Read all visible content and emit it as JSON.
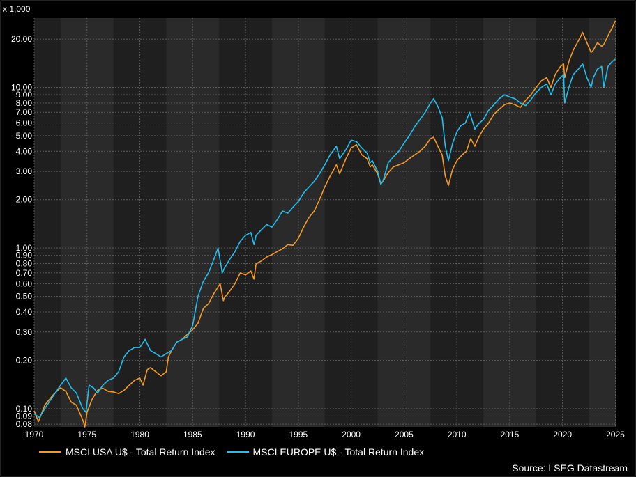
{
  "chart_data": {
    "type": "line",
    "unit_label": "x 1,000",
    "y_scale": "log",
    "ylim": [
      0.077,
      27
    ],
    "xlim": [
      1970,
      2025.1
    ],
    "y_ticks": [
      0.08,
      0.09,
      0.1,
      0.2,
      0.3,
      0.4,
      0.5,
      0.6,
      0.7,
      0.8,
      0.9,
      1.0,
      2.0,
      3.0,
      4.0,
      5.0,
      6.0,
      7.0,
      8.0,
      9.0,
      10.0,
      20.0
    ],
    "y_tick_labels": [
      "0.08",
      "0.09",
      "0.10",
      "0.20",
      "0.30",
      "0.40",
      "0.50",
      "0.60",
      "0.70",
      "0.80",
      "0.90",
      "1.00",
      "2.00",
      "3.00",
      "4.00",
      "5.00",
      "6.00",
      "7.00",
      "8.00",
      "9.00",
      "10.00",
      "20.00"
    ],
    "x_ticks": [
      1970,
      1975,
      1980,
      1985,
      1990,
      1995,
      2000,
      2005,
      2010,
      2015,
      2020,
      2025
    ],
    "x_tick_labels": [
      "1970",
      "1975",
      "1980",
      "1985",
      "1990",
      "1995",
      "2000",
      "2005",
      "2010",
      "2015",
      "2020",
      "2025"
    ],
    "shaded_bands": [
      [
        1972.5,
        1977.5
      ],
      [
        1982.5,
        1987.5
      ],
      [
        1992.5,
        1997.5
      ],
      [
        2002.5,
        2007.5
      ],
      [
        2012.5,
        2017.5
      ],
      [
        2022.5,
        2025.1
      ]
    ],
    "series": [
      {
        "name": "MSCI USA U$ - Total Return Index",
        "color": "#f39a1f",
        "x": [
          1970.0,
          1970.4,
          1971.0,
          1971.8,
          1972.5,
          1973.0,
          1973.5,
          1974.0,
          1974.6,
          1974.8,
          1975.0,
          1975.5,
          1976.0,
          1976.5,
          1977.0,
          1977.5,
          1978.0,
          1978.5,
          1979.0,
          1979.5,
          1980.0,
          1980.3,
          1980.7,
          1981.0,
          1981.5,
          1982.0,
          1982.5,
          1982.7,
          1983.0,
          1983.5,
          1984.0,
          1984.5,
          1985.0,
          1985.5,
          1986.0,
          1986.5,
          1987.0,
          1987.6,
          1987.9,
          1988.0,
          1988.5,
          1989.0,
          1989.5,
          1990.0,
          1990.5,
          1990.8,
          1991.0,
          1991.5,
          1992.0,
          1992.5,
          1993.0,
          1993.5,
          1994.0,
          1994.5,
          1995.0,
          1995.5,
          1996.0,
          1996.5,
          1997.0,
          1997.5,
          1998.0,
          1998.6,
          1998.9,
          1999.5,
          2000.0,
          2000.5,
          2001.0,
          2001.5,
          2001.8,
          2002.0,
          2002.5,
          2002.8,
          2003.0,
          2003.5,
          2004.0,
          2004.5,
          2005.0,
          2005.5,
          2006.0,
          2006.5,
          2007.0,
          2007.5,
          2007.8,
          2008.2,
          2008.6,
          2008.9,
          2009.2,
          2009.6,
          2010.0,
          2010.5,
          2010.9,
          2011.3,
          2011.7,
          2012.0,
          2012.5,
          2013.0,
          2013.5,
          2014.0,
          2014.5,
          2015.0,
          2015.5,
          2016.0,
          2016.5,
          2017.0,
          2017.5,
          2018.0,
          2018.5,
          2018.9,
          2019.3,
          2019.8,
          2020.1,
          2020.2,
          2020.6,
          2021.0,
          2021.5,
          2021.9,
          2022.3,
          2022.7,
          2022.9,
          2023.3,
          2023.7,
          2023.9,
          2024.3,
          2024.7,
          2025.0
        ],
        "values": [
          0.097,
          0.083,
          0.105,
          0.122,
          0.135,
          0.128,
          0.11,
          0.105,
          0.085,
          0.077,
          0.095,
          0.115,
          0.13,
          0.134,
          0.128,
          0.127,
          0.124,
          0.13,
          0.14,
          0.15,
          0.155,
          0.14,
          0.175,
          0.18,
          0.17,
          0.16,
          0.17,
          0.21,
          0.23,
          0.26,
          0.27,
          0.29,
          0.31,
          0.34,
          0.42,
          0.45,
          0.52,
          0.6,
          0.47,
          0.49,
          0.54,
          0.6,
          0.7,
          0.68,
          0.72,
          0.64,
          0.8,
          0.83,
          0.88,
          0.91,
          0.95,
          0.99,
          1.05,
          1.04,
          1.15,
          1.35,
          1.55,
          1.7,
          2.0,
          2.4,
          2.8,
          3.3,
          2.9,
          3.6,
          4.2,
          4.4,
          3.8,
          3.6,
          3.2,
          3.3,
          2.9,
          2.5,
          2.6,
          2.95,
          3.2,
          3.3,
          3.4,
          3.6,
          3.8,
          4.0,
          4.3,
          4.8,
          4.9,
          4.3,
          3.8,
          2.8,
          2.45,
          3.1,
          3.5,
          3.8,
          4.0,
          4.8,
          4.3,
          4.8,
          5.5,
          6.0,
          6.8,
          7.3,
          7.8,
          8.0,
          7.8,
          7.5,
          8.3,
          9.0,
          10.0,
          11.0,
          11.5,
          10.0,
          12.0,
          13.5,
          14.0,
          11.5,
          14.5,
          17.0,
          19.5,
          22.0,
          19.0,
          16.5,
          17.0,
          19.0,
          18.0,
          18.5,
          21.0,
          23.5,
          26.0
        ]
      },
      {
        "name": "MSCI EUROPE U$ - Total Return Index",
        "color": "#1fc0ef",
        "x": [
          1970.0,
          1970.5,
          1971.0,
          1971.8,
          1972.5,
          1973.0,
          1973.5,
          1974.0,
          1974.6,
          1974.9,
          1975.2,
          1975.6,
          1976.0,
          1976.5,
          1977.0,
          1977.5,
          1978.0,
          1978.5,
          1979.0,
          1979.5,
          1980.0,
          1980.5,
          1981.0,
          1981.5,
          1982.0,
          1982.5,
          1983.0,
          1983.5,
          1984.0,
          1984.5,
          1985.0,
          1985.5,
          1986.0,
          1986.5,
          1987.0,
          1987.4,
          1987.8,
          1988.0,
          1988.5,
          1989.0,
          1989.5,
          1990.0,
          1990.5,
          1990.8,
          1991.0,
          1991.5,
          1992.0,
          1992.5,
          1993.0,
          1993.5,
          1994.0,
          1994.5,
          1995.0,
          1995.5,
          1996.0,
          1996.5,
          1997.0,
          1997.5,
          1998.0,
          1998.6,
          1998.9,
          1999.5,
          2000.0,
          2000.5,
          2001.0,
          2001.5,
          2001.8,
          2002.0,
          2002.5,
          2002.8,
          2003.0,
          2003.5,
          2004.0,
          2004.5,
          2005.0,
          2005.5,
          2006.0,
          2006.5,
          2007.0,
          2007.5,
          2007.8,
          2008.2,
          2008.6,
          2008.9,
          2009.2,
          2009.6,
          2010.0,
          2010.4,
          2010.8,
          2011.2,
          2011.7,
          2012.0,
          2012.5,
          2013.0,
          2013.5,
          2014.0,
          2014.5,
          2015.0,
          2015.5,
          2016.0,
          2016.5,
          2017.0,
          2017.5,
          2018.0,
          2018.5,
          2018.9,
          2019.3,
          2019.8,
          2020.1,
          2020.2,
          2020.6,
          2021.0,
          2021.5,
          2021.9,
          2022.3,
          2022.7,
          2022.9,
          2023.3,
          2023.7,
          2023.9,
          2024.3,
          2024.7,
          2025.0
        ],
        "values": [
          0.093,
          0.088,
          0.1,
          0.12,
          0.14,
          0.155,
          0.135,
          0.125,
          0.1,
          0.095,
          0.14,
          0.135,
          0.125,
          0.14,
          0.15,
          0.155,
          0.17,
          0.21,
          0.23,
          0.24,
          0.24,
          0.27,
          0.23,
          0.22,
          0.21,
          0.22,
          0.23,
          0.26,
          0.27,
          0.28,
          0.33,
          0.5,
          0.62,
          0.7,
          0.85,
          1.0,
          0.7,
          0.75,
          0.85,
          0.95,
          1.1,
          1.2,
          1.25,
          1.05,
          1.2,
          1.3,
          1.4,
          1.35,
          1.5,
          1.7,
          1.65,
          1.8,
          1.95,
          2.2,
          2.4,
          2.6,
          2.9,
          3.3,
          3.8,
          4.3,
          3.6,
          4.1,
          4.7,
          4.6,
          4.2,
          3.9,
          3.4,
          3.5,
          3.0,
          2.5,
          2.6,
          3.4,
          3.7,
          4.0,
          4.5,
          5.0,
          5.7,
          6.3,
          7.0,
          8.0,
          8.5,
          7.6,
          6.5,
          4.3,
          3.5,
          4.5,
          5.3,
          5.8,
          6.0,
          7.0,
          5.5,
          5.9,
          6.3,
          7.2,
          7.8,
          8.5,
          9.0,
          8.7,
          8.5,
          8.0,
          7.7,
          8.4,
          9.3,
          10.0,
          10.5,
          9.0,
          10.5,
          11.5,
          12.0,
          8.0,
          10.0,
          12.0,
          13.0,
          14.0,
          11.5,
          10.0,
          11.5,
          13.0,
          13.5,
          10.0,
          13.5,
          14.5,
          15.0
        ]
      }
    ],
    "legend": [
      {
        "label": "MSCI USA U$ - Total Return Index",
        "color": "#f39a1f"
      },
      {
        "label": "MSCI EUROPE U$ - Total Return Index",
        "color": "#1fc0ef"
      }
    ],
    "legend_position": "bottom-left",
    "grid": true,
    "source": "Source: LSEG Datastream"
  }
}
